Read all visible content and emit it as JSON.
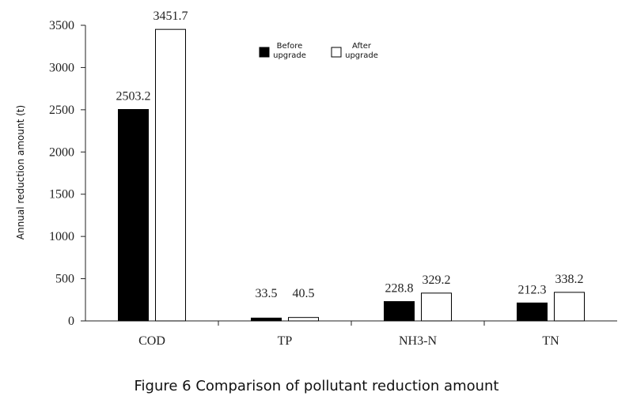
{
  "caption": "Figure 6 Comparison of pollutant reduction amount",
  "chart_data": {
    "type": "bar",
    "title": "",
    "xlabel": "",
    "ylabel": "Annual reduction amount (t)",
    "categories": [
      "COD",
      "TP",
      "NH3-N",
      "TN"
    ],
    "series": [
      {
        "name": "Before upgrade",
        "values": [
          2503.2,
          33.5,
          228.8,
          212.3
        ],
        "labels": [
          "2503.2",
          "33.5",
          "228.8",
          "212.3"
        ],
        "fill": "#000000"
      },
      {
        "name": "After upgrade",
        "values": [
          3451.7,
          40.5,
          329.2,
          338.2
        ],
        "labels": [
          "3451.7",
          "40.5",
          "329.2",
          "338.2"
        ],
        "fill": "#ffffff"
      }
    ],
    "ylim": [
      0,
      3500
    ],
    "yticks": [
      0,
      500,
      1000,
      1500,
      2000,
      2500,
      3000,
      3500
    ],
    "legend": {
      "placement": "top-center",
      "entries": [
        {
          "lines": [
            "Before",
            "upgrade"
          ],
          "fill": "#000000"
        },
        {
          "lines": [
            "After",
            "upgrade"
          ],
          "fill": "#ffffff"
        }
      ]
    },
    "grid": false
  }
}
